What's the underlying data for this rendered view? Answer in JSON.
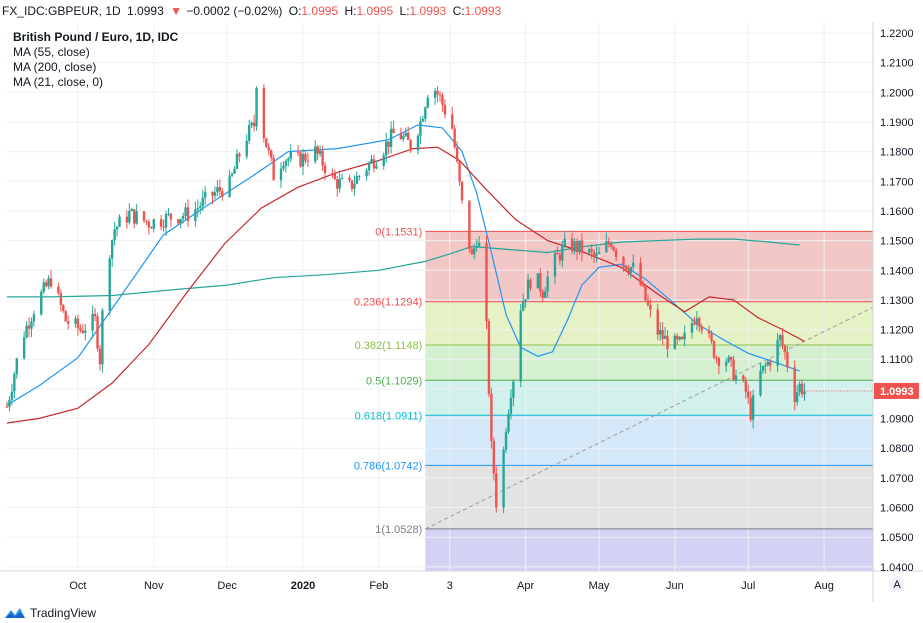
{
  "header": {
    "symbol": "FX_IDC:GBPEUR, 1D",
    "last": "1.0993",
    "change_arrow": "▼",
    "change": "−0.0002 (−0.02%)",
    "open_label": "O:",
    "open": "1.0995",
    "high_label": "H:",
    "high": "1.0995",
    "low_label": "L:",
    "low": "1.0993",
    "close_label": "C:",
    "close": "1.0993",
    "down_color": "#ef5350"
  },
  "legend": {
    "title": "British Pound / Euro, 1D, IDC",
    "ma1": "MA (55, close)",
    "ma2": "MA (200, close)",
    "ma3": "MA (21, close, 0)"
  },
  "footer": {
    "brand": "TradingView"
  },
  "price_axis": {
    "scale_button": "A"
  },
  "chart_data": {
    "type": "candlestick",
    "symbol": "GBPEUR",
    "ylim": [
      1.0386,
      1.2237
    ],
    "yticks": [
      "1.0400",
      "1.0500",
      "1.0600",
      "1.0700",
      "1.0800",
      "1.0900",
      "1.1000",
      "1.1100",
      "1.1200",
      "1.1300",
      "1.1400",
      "1.1500",
      "1.1600",
      "1.1700",
      "1.1800",
      "1.1900",
      "1.2000",
      "1.2100",
      "1.2200"
    ],
    "xticks": [
      "Oct",
      "Nov",
      "Dec",
      "2020",
      "Feb",
      "3",
      "Apr",
      "May",
      "Jun",
      "Jul",
      "Aug"
    ],
    "xlim": [
      "2019-09-02",
      "2020-08-21"
    ],
    "last_price": {
      "label": "1.0993",
      "value": 1.0993,
      "color": "#ef5350"
    },
    "candle_colors": {
      "up": "#26a69a",
      "down": "#ef5350"
    },
    "fibonacci": {
      "start_date": "2020-02-20",
      "end_date": "2020-08-21",
      "levels": [
        {
          "label": "0(1.1531)",
          "value": 1.1531,
          "color": "#ef5350"
        },
        {
          "label": "0.236(1.1294)",
          "value": 1.1294,
          "color": "#ef5350"
        },
        {
          "label": "0.382(1.1148)",
          "value": 1.1148,
          "color": "#8bc34a"
        },
        {
          "label": "0.5(1.1029)",
          "value": 1.1029,
          "color": "#4caf50"
        },
        {
          "label": "0.618(1.0911)",
          "value": 1.0911,
          "color": "#00bcd4"
        },
        {
          "label": "0.786(1.0742)",
          "value": 1.0742,
          "color": "#2196f3"
        },
        {
          "label": "1(1.0528)",
          "value": 1.0528,
          "color": "#787b86"
        }
      ],
      "zone_colors": [
        "#f4c7c7",
        "#e5f2c5",
        "#d5efd1",
        "#d2f1ec",
        "#d4e8f7",
        "#e3e3e3",
        "#d3d1f4"
      ]
    },
    "trendline": {
      "from": [
        "2020-02-20",
        1.0528
      ],
      "to": [
        "2020-08-21",
        1.1275
      ],
      "color": "#9e9e9e"
    },
    "moving_averages": [
      {
        "name": "MA (55, close)",
        "color": "#2196f3",
        "points": [
          [
            "2019-09-02",
            1.0945
          ],
          [
            "2019-09-15",
            1.101
          ],
          [
            "2019-10-01",
            1.1105
          ],
          [
            "2019-10-20",
            1.133
          ],
          [
            "2019-11-05",
            1.152
          ],
          [
            "2019-11-25",
            1.163
          ],
          [
            "2019-12-10",
            1.171
          ],
          [
            "2019-12-26",
            1.18
          ],
          [
            "2020-01-15",
            1.181
          ],
          [
            "2020-02-05",
            1.184
          ],
          [
            "2020-02-17",
            1.189
          ],
          [
            "2020-02-27",
            1.188
          ],
          [
            "2020-03-06",
            1.18
          ],
          [
            "2020-03-12",
            1.166
          ],
          [
            "2020-03-18",
            1.146
          ],
          [
            "2020-03-24",
            1.125
          ],
          [
            "2020-03-30",
            1.114
          ],
          [
            "2020-04-06",
            1.111
          ],
          [
            "2020-04-12",
            1.1125
          ],
          [
            "2020-04-18",
            1.123
          ],
          [
            "2020-04-24",
            1.135
          ],
          [
            "2020-05-01",
            1.141
          ],
          [
            "2020-05-10",
            1.142
          ],
          [
            "2020-05-20",
            1.137
          ],
          [
            "2020-05-30",
            1.13
          ],
          [
            "2020-06-10",
            1.122
          ],
          [
            "2020-06-20",
            1.117
          ],
          [
            "2020-07-01",
            1.112
          ],
          [
            "2020-07-12",
            1.109
          ],
          [
            "2020-07-22",
            1.106
          ]
        ]
      },
      {
        "name": "MA (200, close)",
        "color": "#26a69a",
        "points": [
          [
            "2019-09-02",
            1.131
          ],
          [
            "2019-09-20",
            1.131
          ],
          [
            "2019-10-15",
            1.1315
          ],
          [
            "2019-11-10",
            1.1335
          ],
          [
            "2019-12-01",
            1.135
          ],
          [
            "2019-12-20",
            1.1375
          ],
          [
            "2020-01-10",
            1.1385
          ],
          [
            "2020-02-01",
            1.14
          ],
          [
            "2020-02-20",
            1.143
          ],
          [
            "2020-03-01",
            1.1455
          ],
          [
            "2020-03-10",
            1.148
          ],
          [
            "2020-03-25",
            1.147
          ],
          [
            "2020-04-10",
            1.146
          ],
          [
            "2020-04-25",
            1.148
          ],
          [
            "2020-05-10",
            1.1495
          ],
          [
            "2020-05-25",
            1.15
          ],
          [
            "2020-06-10",
            1.1505
          ],
          [
            "2020-06-25",
            1.1505
          ],
          [
            "2020-07-10",
            1.1495
          ],
          [
            "2020-07-22",
            1.1485
          ]
        ]
      },
      {
        "name": "MA (21, close, 0)",
        "color": "#c62828",
        "points": [
          [
            "2019-09-02",
            1.0885
          ],
          [
            "2019-09-15",
            1.09
          ],
          [
            "2019-10-01",
            1.0935
          ],
          [
            "2019-10-15",
            1.102
          ],
          [
            "2019-10-30",
            1.115
          ],
          [
            "2019-11-15",
            1.133
          ],
          [
            "2019-11-30",
            1.149
          ],
          [
            "2019-12-15",
            1.161
          ],
          [
            "2019-12-30",
            1.168
          ],
          [
            "2020-01-15",
            1.173
          ],
          [
            "2020-02-01",
            1.177
          ],
          [
            "2020-02-15",
            1.181
          ],
          [
            "2020-02-25",
            1.1815
          ],
          [
            "2020-03-05",
            1.177
          ],
          [
            "2020-03-15",
            1.168
          ],
          [
            "2020-03-28",
            1.157
          ],
          [
            "2020-04-10",
            1.15
          ],
          [
            "2020-04-25",
            1.146
          ],
          [
            "2020-05-10",
            1.141
          ],
          [
            "2020-05-25",
            1.132
          ],
          [
            "2020-06-05",
            1.126
          ],
          [
            "2020-06-15",
            1.131
          ],
          [
            "2020-06-25",
            1.13
          ],
          [
            "2020-07-05",
            1.124
          ],
          [
            "2020-07-15",
            1.12
          ],
          [
            "2020-07-24",
            1.116
          ]
        ]
      }
    ],
    "anchors": [
      [
        "2019-09-02",
        1.094
      ],
      [
        "2019-09-08",
        1.117
      ],
      [
        "2019-09-14",
        1.129
      ],
      [
        "2019-09-20",
        1.137
      ],
      [
        "2019-09-26",
        1.123
      ],
      [
        "2019-10-02",
        1.12
      ],
      [
        "2019-10-08",
        1.123
      ],
      [
        "2019-10-10",
        1.11
      ],
      [
        "2019-10-12",
        1.14
      ],
      [
        "2019-10-16",
        1.154
      ],
      [
        "2019-10-22",
        1.159
      ],
      [
        "2019-10-30",
        1.156
      ],
      [
        "2019-11-08",
        1.158
      ],
      [
        "2019-11-16",
        1.159
      ],
      [
        "2019-11-24",
        1.165
      ],
      [
        "2019-12-02",
        1.169
      ],
      [
        "2019-12-08",
        1.184
      ],
      [
        "2019-12-12",
        1.189
      ],
      [
        "2019-12-13",
        1.204
      ],
      [
        "2019-12-16",
        1.186
      ],
      [
        "2019-12-20",
        1.172
      ],
      [
        "2019-12-24",
        1.178
      ],
      [
        "2019-12-30",
        1.177
      ],
      [
        "2020-01-06",
        1.18
      ],
      [
        "2020-01-14",
        1.17
      ],
      [
        "2020-01-20",
        1.168
      ],
      [
        "2020-01-26",
        1.174
      ],
      [
        "2020-02-01",
        1.179
      ],
      [
        "2020-02-08",
        1.187
      ],
      [
        "2020-02-14",
        1.182
      ],
      [
        "2020-02-18",
        1.19
      ],
      [
        "2020-02-22",
        1.204
      ],
      [
        "2020-02-26",
        1.198
      ],
      [
        "2020-03-02",
        1.188
      ],
      [
        "2020-03-06",
        1.162
      ],
      [
        "2020-03-10",
        1.144
      ],
      [
        "2020-03-12",
        1.151
      ],
      [
        "2020-03-14",
        1.145
      ],
      [
        "2020-03-16",
        1.12
      ],
      [
        "2020-03-18",
        1.08
      ],
      [
        "2020-03-19",
        1.072
      ],
      [
        "2020-03-20",
        1.062
      ],
      [
        "2020-03-22",
        1.07
      ],
      [
        "2020-03-24",
        1.088
      ],
      [
        "2020-03-26",
        1.1
      ],
      [
        "2020-03-28",
        1.108
      ],
      [
        "2020-03-30",
        1.128
      ],
      [
        "2020-04-04",
        1.139
      ],
      [
        "2020-04-08",
        1.133
      ],
      [
        "2020-04-12",
        1.142
      ],
      [
        "2020-04-18",
        1.149
      ],
      [
        "2020-04-24",
        1.147
      ],
      [
        "2020-04-30",
        1.144
      ],
      [
        "2020-05-06",
        1.15
      ],
      [
        "2020-05-10",
        1.143
      ],
      [
        "2020-05-16",
        1.14
      ],
      [
        "2020-05-20",
        1.13
      ],
      [
        "2020-05-24",
        1.12
      ],
      [
        "2020-05-30",
        1.115
      ],
      [
        "2020-06-04",
        1.115
      ],
      [
        "2020-06-10",
        1.126
      ],
      [
        "2020-06-14",
        1.118
      ],
      [
        "2020-06-18",
        1.111
      ],
      [
        "2020-06-22",
        1.11
      ],
      [
        "2020-06-26",
        1.104
      ],
      [
        "2020-06-30",
        1.099
      ],
      [
        "2020-07-02",
        1.092
      ],
      [
        "2020-07-06",
        1.105
      ],
      [
        "2020-07-10",
        1.11
      ],
      [
        "2020-07-14",
        1.117
      ],
      [
        "2020-07-16",
        1.112
      ],
      [
        "2020-07-18",
        1.105
      ],
      [
        "2020-07-20",
        1.098
      ],
      [
        "2020-07-22",
        1.101
      ],
      [
        "2020-07-24",
        1.0993
      ]
    ]
  }
}
